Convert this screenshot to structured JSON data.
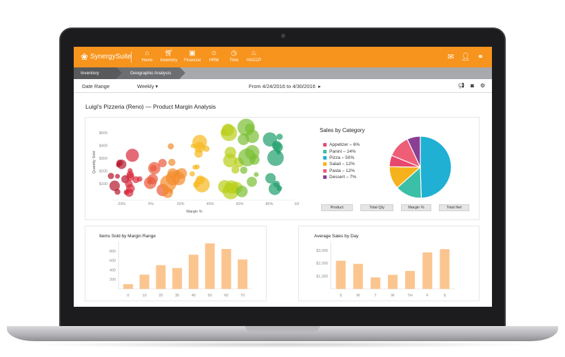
{
  "app": {
    "logo_text": "SynergySuite",
    "nav": [
      {
        "label": "Home",
        "icon": "home-icon",
        "glyph": "⌂"
      },
      {
        "label": "Inventory",
        "icon": "cart-icon",
        "glyph": "🛒"
      },
      {
        "label": "Financial",
        "icon": "money-icon",
        "glyph": "▣"
      },
      {
        "label": "HRM",
        "icon": "people-icon",
        "glyph": "👥"
      },
      {
        "label": "Time",
        "icon": "clock-icon",
        "glyph": "◷"
      },
      {
        "label": "HACCP",
        "icon": "flame-icon",
        "glyph": "♨"
      }
    ],
    "right_icons": [
      "mail-icon",
      "user-icon",
      "link-icon"
    ],
    "accent_color": "#f7941d"
  },
  "breadcrumb": {
    "items": [
      "Inventory",
      "Geographic Analysis"
    ]
  },
  "filters": {
    "date_range_label": "Date Range",
    "period": "Weekly",
    "range_text": "From  4/24/2016  to  4/30/2016"
  },
  "page": {
    "title": "Luigi's Pizzeria (Reno) — Product Margin Analysis"
  },
  "bubble_chart": {
    "ylabel": "Quantity Sold",
    "xlabel": "Margin %",
    "yticks": [
      "$500",
      "$400",
      "$300",
      "$200",
      "$100"
    ],
    "xticks": [
      "-20%",
      "0%",
      "20%",
      "40%",
      "60%",
      "80%",
      "100%"
    ]
  },
  "pie": {
    "title": "Sales by Category",
    "legend": [
      {
        "label": "Appetizer – 6%",
        "color": "#e8486e"
      },
      {
        "label": "Panini – 14%",
        "color": "#3bbfa7"
      },
      {
        "label": "Pizza – 50%",
        "color": "#1fb0d4"
      },
      {
        "label": "Salad – 12%",
        "color": "#f6b21c"
      },
      {
        "label": "Pasta – 12%",
        "color": "#ee5f77"
      },
      {
        "label": "Dessert – 7%",
        "color": "#8a3f95"
      }
    ],
    "buttons": [
      "Product",
      "Total Qty",
      "Margin %",
      "Total Net"
    ]
  },
  "chart_data": [
    {
      "type": "pie",
      "title": "Sales by Category",
      "categories": [
        "Appetizer",
        "Panini",
        "Pizza",
        "Salad",
        "Pasta",
        "Dessert"
      ],
      "values": [
        6,
        14,
        50,
        12,
        12,
        7
      ]
    },
    {
      "type": "bar",
      "title": "Items Sold by Margin Range",
      "categories": [
        "0",
        "10",
        "20",
        "30",
        "40",
        "50",
        "60",
        "70"
      ],
      "values": [
        100,
        300,
        500,
        440,
        720,
        960,
        840,
        620
      ],
      "yticks": [
        "800",
        "600",
        "400",
        "200"
      ],
      "ylim": [
        0,
        1000
      ]
    },
    {
      "type": "bar",
      "title": "Average Sales by Day",
      "categories": [
        "S",
        "M",
        "T",
        "W",
        "TH",
        "F",
        "S"
      ],
      "values": [
        2200,
        1950,
        900,
        1100,
        1400,
        2850,
        3100
      ],
      "yticks": [
        "$3,000",
        "$2,000",
        "$1,000"
      ],
      "ylim": [
        0,
        3700
      ]
    }
  ]
}
